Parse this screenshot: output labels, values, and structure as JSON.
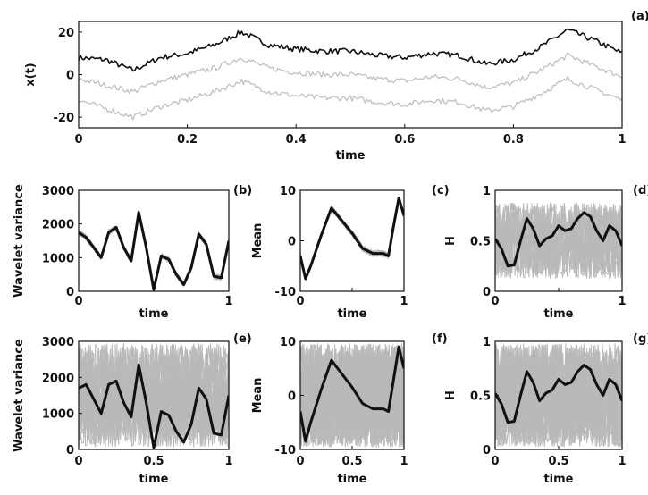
{
  "chart_data": [
    {
      "panel_label": "(a)",
      "type": "line",
      "xlabel": "time",
      "ylabel": "x(t)",
      "xlim": [
        0,
        1
      ],
      "ylim": [
        -25,
        25
      ],
      "xticks": [
        "0",
        "0.2",
        "0.4",
        "0.6",
        "0.8",
        "1"
      ],
      "yticks": [
        "-20",
        "0",
        "20"
      ],
      "grid": false,
      "series": [
        {
          "color": "#111111",
          "x": [
            0,
            0.05,
            0.1,
            0.15,
            0.2,
            0.25,
            0.3,
            0.35,
            0.4,
            0.45,
            0.5,
            0.55,
            0.6,
            0.65,
            0.7,
            0.75,
            0.8,
            0.85,
            0.9,
            0.95,
            1.0
          ],
          "values": [
            8,
            7,
            2,
            8,
            10,
            14,
            20,
            14,
            12,
            11,
            11,
            9,
            8,
            10,
            9,
            5,
            7,
            13,
            21,
            16,
            10
          ]
        },
        {
          "color": "#c0c0c0",
          "x": [
            0,
            0.05,
            0.1,
            0.15,
            0.2,
            0.25,
            0.3,
            0.35,
            0.4,
            0.45,
            0.5,
            0.55,
            0.6,
            0.65,
            0.7,
            0.75,
            0.8,
            0.85,
            0.9,
            0.95,
            1.0
          ],
          "values": [
            -2,
            -5,
            -8,
            -3,
            0,
            3,
            8,
            3,
            1,
            0,
            0,
            -2,
            -3,
            -1,
            -2,
            -6,
            -4,
            2,
            9,
            4,
            -1
          ]
        },
        {
          "color": "#c0c0c0",
          "x": [
            0,
            0.05,
            0.1,
            0.15,
            0.2,
            0.25,
            0.3,
            0.35,
            0.4,
            0.45,
            0.5,
            0.55,
            0.6,
            0.65,
            0.7,
            0.75,
            0.8,
            0.85,
            0.9,
            0.95,
            1.0
          ],
          "values": [
            -12,
            -16,
            -20,
            -15,
            -12,
            -8,
            -3,
            -8,
            -10,
            -11,
            -11,
            -13,
            -14,
            -12,
            -13,
            -17,
            -15,
            -9,
            -2,
            -7,
            -12
          ]
        }
      ]
    },
    {
      "panel_label": "(b)",
      "type": "line",
      "xlabel": "time",
      "ylabel": "Wavelet variance",
      "xlim": [
        0,
        1
      ],
      "ylim": [
        0,
        3000
      ],
      "xticks": [
        "0",
        "",
        "1"
      ],
      "yticks": [
        "0",
        "1000",
        "2000",
        "3000"
      ],
      "series": [
        {
          "color": "#111111",
          "x": [
            0,
            0.05,
            0.1,
            0.15,
            0.2,
            0.25,
            0.3,
            0.35,
            0.4,
            0.45,
            0.5,
            0.55,
            0.6,
            0.65,
            0.7,
            0.75,
            0.8,
            0.85,
            0.9,
            0.95,
            1.0
          ],
          "values": [
            1750,
            1600,
            1300,
            1000,
            1750,
            1900,
            1300,
            900,
            2350,
            1300,
            50,
            1050,
            950,
            500,
            200,
            700,
            1700,
            1400,
            450,
            400,
            1500
          ]
        }
      ]
    },
    {
      "panel_label": "(c)",
      "type": "line",
      "xlabel": "time",
      "ylabel": "Mean",
      "xlim": [
        0,
        1
      ],
      "ylim": [
        -10,
        10
      ],
      "xticks": [
        "0",
        "",
        "1"
      ],
      "yticks": [
        "-10",
        "0",
        "10"
      ],
      "series": [
        {
          "color": "#111111",
          "x": [
            0,
            0.05,
            0.1,
            0.2,
            0.3,
            0.4,
            0.5,
            0.6,
            0.7,
            0.8,
            0.85,
            0.9,
            0.95,
            1.0
          ],
          "values": [
            -3,
            -7.5,
            -5,
            1,
            6.5,
            4,
            1.5,
            -1.5,
            -2.5,
            -2.5,
            -3,
            3,
            8.5,
            5
          ]
        }
      ]
    },
    {
      "panel_label": "(d)",
      "type": "line",
      "xlabel": "time",
      "ylabel": "H",
      "xlim": [
        0,
        1
      ],
      "ylim": [
        0,
        1
      ],
      "xticks": [
        "0",
        "",
        "1"
      ],
      "yticks": [
        "0",
        "0.5",
        "1"
      ],
      "series": [
        {
          "color": "#111111",
          "x": [
            0,
            0.05,
            0.1,
            0.15,
            0.2,
            0.25,
            0.3,
            0.35,
            0.4,
            0.45,
            0.5,
            0.55,
            0.6,
            0.65,
            0.7,
            0.75,
            0.8,
            0.85,
            0.9,
            0.95,
            1.0
          ],
          "values": [
            0.52,
            0.42,
            0.25,
            0.26,
            0.5,
            0.72,
            0.62,
            0.45,
            0.52,
            0.55,
            0.65,
            0.6,
            0.62,
            0.72,
            0.78,
            0.74,
            0.6,
            0.5,
            0.65,
            0.6,
            0.45
          ]
        }
      ]
    },
    {
      "panel_label": "(e)",
      "type": "line",
      "xlabel": "time",
      "ylabel": "Wavelet variance",
      "xlim": [
        0,
        1
      ],
      "ylim": [
        0,
        3000
      ],
      "xticks": [
        "0",
        "0.5",
        "1"
      ],
      "yticks": [
        "0",
        "1000",
        "2000",
        "3000"
      ],
      "series": [
        {
          "color": "#111111",
          "x": [
            0,
            0.05,
            0.1,
            0.15,
            0.2,
            0.25,
            0.3,
            0.35,
            0.4,
            0.45,
            0.5,
            0.55,
            0.6,
            0.65,
            0.7,
            0.75,
            0.8,
            0.85,
            0.9,
            0.95,
            1.0
          ],
          "values": [
            1700,
            1800,
            1400,
            1000,
            1800,
            1900,
            1300,
            900,
            2350,
            1300,
            50,
            1050,
            950,
            500,
            200,
            700,
            1700,
            1400,
            450,
            400,
            1500
          ]
        }
      ]
    },
    {
      "panel_label": "(f)",
      "type": "line",
      "xlabel": "time",
      "ylabel": "Mean",
      "xlim": [
        0,
        1
      ],
      "ylim": [
        -10,
        10
      ],
      "xticks": [
        "0",
        "0.5",
        "1"
      ],
      "yticks": [
        "-10",
        "0",
        "10"
      ],
      "series": [
        {
          "color": "#111111",
          "x": [
            0,
            0.05,
            0.1,
            0.2,
            0.3,
            0.4,
            0.5,
            0.6,
            0.7,
            0.8,
            0.85,
            0.9,
            0.95,
            1.0
          ],
          "values": [
            -3,
            -8.5,
            -5,
            1,
            6.5,
            4,
            1.5,
            -1.5,
            -2.5,
            -2.5,
            -3,
            3,
            9,
            5
          ]
        }
      ]
    },
    {
      "panel_label": "(g)",
      "type": "line",
      "xlabel": "time",
      "ylabel": "H",
      "xlim": [
        0,
        1
      ],
      "ylim": [
        0,
        1
      ],
      "xticks": [
        "0",
        "0.5",
        "1"
      ],
      "yticks": [
        "0",
        "0.5",
        "1"
      ],
      "series": [
        {
          "color": "#111111",
          "x": [
            0,
            0.05,
            0.1,
            0.15,
            0.2,
            0.25,
            0.3,
            0.35,
            0.4,
            0.45,
            0.5,
            0.55,
            0.6,
            0.65,
            0.7,
            0.75,
            0.8,
            0.85,
            0.9,
            0.95,
            1.0
          ],
          "values": [
            0.52,
            0.42,
            0.25,
            0.26,
            0.5,
            0.72,
            0.62,
            0.45,
            0.52,
            0.55,
            0.65,
            0.6,
            0.62,
            0.72,
            0.78,
            0.74,
            0.6,
            0.5,
            0.65,
            0.6,
            0.45
          ]
        }
      ]
    }
  ]
}
